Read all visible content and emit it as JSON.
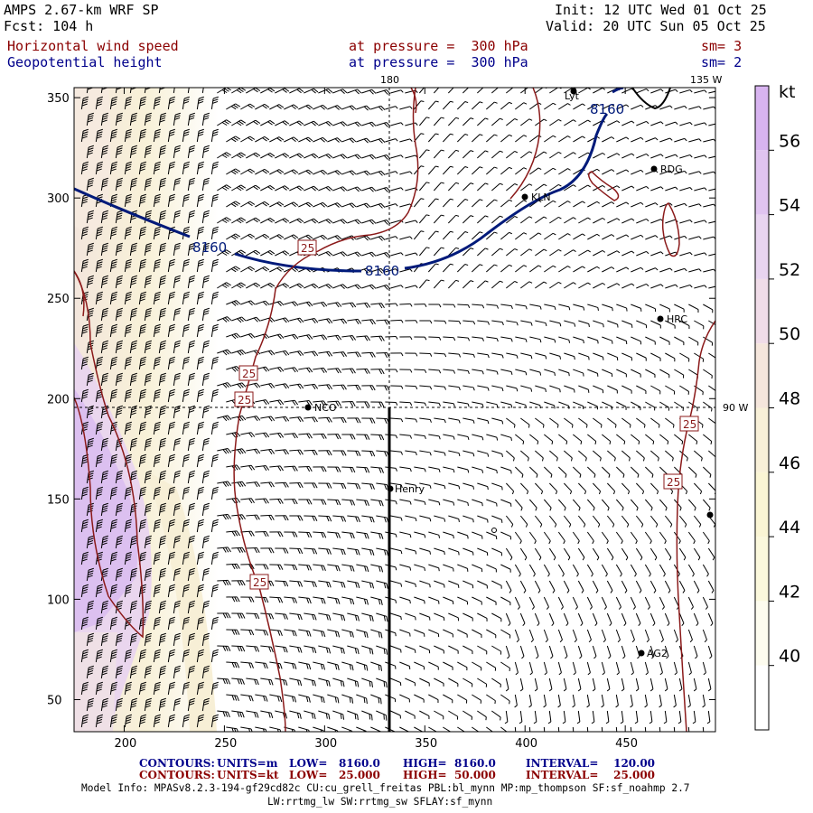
{
  "header": {
    "model": "AMPS 2.67-km WRF SP",
    "forecast": "Fcst: 104 h",
    "init": "Init: 12 UTC Wed 01 Oct 25",
    "valid": "Valid: 20 UTC Sun 05 Oct 25",
    "field1": "Horizontal wind speed",
    "field2": "Geopotential height",
    "level1": "at pressure =  300 hPa",
    "level2": "at pressure =  300 hPa",
    "smooth1": "sm= 3",
    "smooth2": "sm= 2"
  },
  "map": {
    "lon_180": "180",
    "lon_135w": "135 W",
    "lon_90w": "90 W",
    "contour_label_height": "8160",
    "contour_label_speed": "25",
    "stations": [
      "Lyt",
      "RDG",
      "KLN",
      "HRC",
      "NCO",
      "Henry",
      "AG2"
    ],
    "x_ticks": [
      "200",
      "250",
      "300",
      "350",
      "400",
      "450"
    ],
    "y_ticks": [
      "350",
      "300",
      "250",
      "200",
      "150",
      "100",
      "50"
    ]
  },
  "colorbar": {
    "unit": "kt",
    "labels": [
      "56",
      "54",
      "52",
      "50",
      "48",
      "46",
      "44",
      "42",
      "40"
    ],
    "colors": [
      "#d8b4f0",
      "#e0c4f0",
      "#e8d4f0",
      "#f0dce8",
      "#f5e6dc",
      "#f8f0d8",
      "#faf5d4",
      "#fbf8dc",
      "#fdfcef",
      "#ffffff"
    ]
  },
  "footer": {
    "line1_contours": "CONTOURS:",
    "line1_units": "UNITS=m",
    "line1_low": "LOW=   8160.0",
    "line1_high": "HIGH=  8160.0",
    "line1_interval": "INTERVAL=    120.00",
    "line2_contours": "CONTOURS:",
    "line2_units": "UNITS=kt",
    "line2_low": "LOW=   25.000",
    "line2_high": "HIGH=  50.000",
    "line2_interval": "INTERVAL=    25.000",
    "model_info": "Model Info: MPASv8.2.3-194-gf29cd82c CU:cu_grell_freitas PBL:bl_mynn MP:mp_thompson SF:sf_noahmp 2.7",
    "model_info2": "LW:rrtmg_lw SW:rrtmg_sw SFLAY:sf_mynn"
  }
}
